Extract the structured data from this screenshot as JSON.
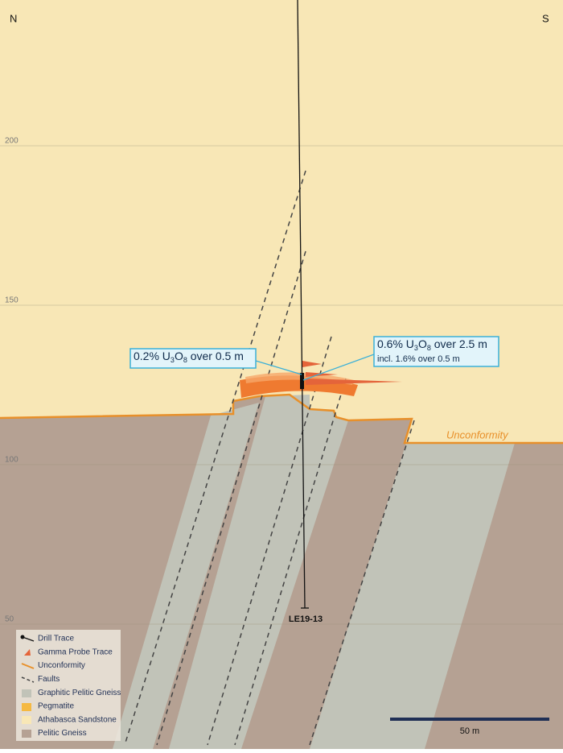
{
  "compass": {
    "left": "N",
    "right": "S"
  },
  "elevation": {
    "ylim": [
      50,
      200
    ],
    "ticks": [
      200,
      150,
      100,
      50
    ]
  },
  "drill_hole": "LE19-13",
  "unconformity_label": "Unconformity",
  "callouts": [
    {
      "parts": [
        "0.2% U",
        "3",
        "O",
        "8",
        " over 0.5 m"
      ]
    },
    {
      "parts": [
        "0.6% U",
        "3",
        "O",
        "8",
        " over 2.5 m"
      ],
      "note": "incl. 1.6% over 0.5 m"
    }
  ],
  "legend": [
    "Drill Trace",
    "Gamma Probe Trace",
    "Unconformity",
    "Faults",
    "Graphitic Pelitic Gneiss",
    "Pegmatite",
    "Athabasca Sandstone",
    "Pelitic Gneiss"
  ],
  "scale_bar": "50 m"
}
